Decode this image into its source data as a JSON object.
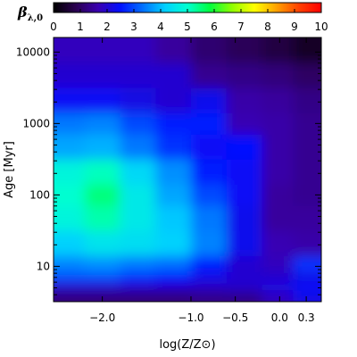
{
  "chart_data": {
    "type": "heatmap",
    "title": "",
    "xlabel": "log(Z/Z⊙)",
    "ylabel": "Age [Myr]",
    "y_scale": "log",
    "xlim": [
      -2.55,
      0.47
    ],
    "ylim": [
      3.2,
      16000
    ],
    "x_ticks": [
      {
        "value": -2.0,
        "label": "−2.0"
      },
      {
        "value": -1.0,
        "label": "−1.0"
      },
      {
        "value": -0.5,
        "label": "−0.5"
      },
      {
        "value": 0.0,
        "label": "0.0"
      },
      {
        "value": 0.3,
        "label": "0.3"
      }
    ],
    "y_ticks": [
      {
        "value": 10,
        "label": "10"
      },
      {
        "value": 100,
        "label": "100"
      },
      {
        "value": 1000,
        "label": "1000"
      },
      {
        "value": 10000,
        "label": "10000"
      }
    ],
    "colorbar": {
      "label": "β",
      "label_sub": "λ,0",
      "min": 0,
      "max": 10,
      "ticks": [
        0,
        1,
        2,
        3,
        4,
        5,
        6,
        7,
        8,
        9,
        10
      ],
      "placement": "top",
      "colormap": [
        "#000000",
        "#2a0050",
        "#3a00b0",
        "#0010ff",
        "#0070ff",
        "#00d0ff",
        "#00ffd0",
        "#00ff40",
        "#90ff00",
        "#ffff00",
        "#ffa000",
        "#ff4000",
        "#ff0000"
      ]
    },
    "log_z_grid": [
      -2.4,
      -2.0,
      -1.6,
      -1.2,
      -0.8,
      -0.4,
      0.0,
      0.3
    ],
    "age_grid_myr": [
      4,
      5,
      7,
      10,
      20,
      50,
      100,
      200,
      500,
      1000,
      2000,
      5000,
      10000
    ],
    "beta_values": [
      [
        1.2,
        1.2,
        1.2,
        1.2,
        1.3,
        1.3,
        1.8,
        2.2
      ],
      [
        1.9,
        1.9,
        1.9,
        1.9,
        1.9,
        2.0,
        2.2,
        2.5
      ],
      [
        3.0,
        3.0,
        2.7,
        2.5,
        2.2,
        2.0,
        2.0,
        2.2
      ],
      [
        3.5,
        3.6,
        3.4,
        3.3,
        2.6,
        2.0,
        1.8,
        2.8
      ],
      [
        4.2,
        4.5,
        4.4,
        4.2,
        3.5,
        2.3,
        1.7,
        1.6
      ],
      [
        4.8,
        5.2,
        4.6,
        4.1,
        3.4,
        2.3,
        1.5,
        1.5
      ],
      [
        5.0,
        5.5,
        4.6,
        3.8,
        3.0,
        2.4,
        1.5,
        1.4
      ],
      [
        4.8,
        5.1,
        4.3,
        3.6,
        2.6,
        2.4,
        1.6,
        1.4
      ],
      [
        3.8,
        3.9,
        3.4,
        2.8,
        2.4,
        2.5,
        1.6,
        1.4
      ],
      [
        3.4,
        3.5,
        3.0,
        2.6,
        2.6,
        1.7,
        1.6,
        1.4
      ],
      [
        2.4,
        2.4,
        2.2,
        2.0,
        2.3,
        1.6,
        1.5,
        1.3
      ],
      [
        2.0,
        2.0,
        2.0,
        2.0,
        1.4,
        1.3,
        1.2,
        1.0
      ],
      [
        1.8,
        1.8,
        1.8,
        1.5,
        1.1,
        0.9,
        0.7,
        0.4
      ]
    ]
  }
}
